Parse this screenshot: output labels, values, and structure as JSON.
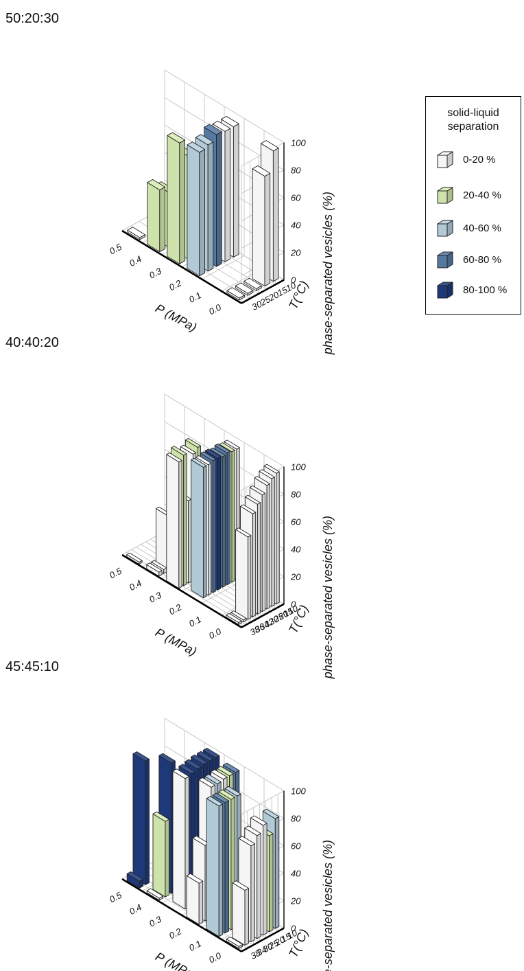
{
  "legend": {
    "title": "solid-liquid separation",
    "items": [
      {
        "label": "0-20 %",
        "color": "#ffffff"
      },
      {
        "label": "20-40 %",
        "color": "#d7ecb2"
      },
      {
        "label": "40-60 %",
        "color": "#b9d1df"
      },
      {
        "label": "60-80 %",
        "color": "#5a7ea8"
      },
      {
        "label": "80-100 %",
        "color": "#1f3b7f"
      }
    ]
  },
  "chart_data": [
    {
      "type": "bar3d",
      "title": "50:20:30",
      "xlabel": "P (MPa)",
      "ylabel": "T(°C)",
      "zlabel": "phase-separated vesicles (%)",
      "p_ticks": [
        "0.5",
        "0.4",
        "0.3",
        "0.2",
        "0.1",
        "0.0"
      ],
      "t_ticks": [
        "10",
        "15",
        "20",
        "25",
        "30"
      ],
      "z_ticks": [
        "0",
        "20",
        "40",
        "60",
        "80",
        "100"
      ],
      "zlim": [
        0,
        100
      ],
      "bars": [
        {
          "p": 0.5,
          "t": 30,
          "value": 0,
          "class": "0-20 %"
        },
        {
          "p": 0.4,
          "t": 30,
          "value": 45,
          "class": "20-40 %"
        },
        {
          "p": 0.4,
          "t": 25,
          "value": 40,
          "class": "20-40 %"
        },
        {
          "p": 0.4,
          "t": 20,
          "value": 12,
          "class": "0-20 %"
        },
        {
          "p": 0.4,
          "t": 15,
          "value": 8,
          "class": "0-20 %"
        },
        {
          "p": 0.3,
          "t": 30,
          "value": 88,
          "class": "20-40 %"
        },
        {
          "p": 0.3,
          "t": 25,
          "value": 75,
          "class": "20-40 %"
        },
        {
          "p": 0.3,
          "t": 20,
          "value": 35,
          "class": "0-20 %"
        },
        {
          "p": 0.3,
          "t": 15,
          "value": 25,
          "class": "0-20 %"
        },
        {
          "p": 0.3,
          "t": 10,
          "value": 10,
          "class": "0-20 %"
        },
        {
          "p": 0.2,
          "t": 30,
          "value": 90,
          "class": "40-60 %"
        },
        {
          "p": 0.2,
          "t": 25,
          "value": 92,
          "class": "40-60 %"
        },
        {
          "p": 0.2,
          "t": 20,
          "value": 96,
          "class": "60-80 %"
        },
        {
          "p": 0.2,
          "t": 15,
          "value": 95,
          "class": "0-20 %"
        },
        {
          "p": 0.2,
          "t": 10,
          "value": 95,
          "class": "0-20 %"
        },
        {
          "p": 0.0,
          "t": 30,
          "value": 0,
          "class": "0-20 %"
        },
        {
          "p": 0.0,
          "t": 25,
          "value": 0,
          "class": "0-20 %"
        },
        {
          "p": 0.0,
          "t": 20,
          "value": 0,
          "class": "0-20 %"
        },
        {
          "p": 0.0,
          "t": 15,
          "value": 80,
          "class": "0-20 %"
        },
        {
          "p": 0.0,
          "t": 10,
          "value": 95,
          "class": "0-20 %"
        }
      ]
    },
    {
      "type": "bar3d",
      "title": "40:40:20",
      "xlabel": "P (MPa)",
      "ylabel": "T(°C)",
      "zlabel": "phase-separated vesicles (%)",
      "p_ticks": [
        "0.5",
        "0.4",
        "0.3",
        "0.2",
        "0.1",
        "0.0"
      ],
      "t_ticks": [
        "10",
        "15",
        "20",
        "25",
        "30",
        "32",
        "34",
        "36",
        "38"
      ],
      "z_ticks": [
        "0",
        "20",
        "40",
        "60",
        "80",
        "100"
      ],
      "zlim": [
        0,
        100
      ],
      "bars": [
        {
          "p": 0.5,
          "t": 38,
          "value": 0,
          "class": "0-20 %"
        },
        {
          "p": 0.4,
          "t": 38,
          "value": 3,
          "class": "0-20 %"
        },
        {
          "p": 0.4,
          "t": 36,
          "value": 3,
          "class": "0-20 %"
        },
        {
          "p": 0.4,
          "t": 34,
          "value": 40,
          "class": "0-20 %"
        },
        {
          "p": 0.4,
          "t": 32,
          "value": 30,
          "class": "0-20 %"
        },
        {
          "p": 0.3,
          "t": 38,
          "value": 92,
          "class": "0-20 %"
        },
        {
          "p": 0.3,
          "t": 36,
          "value": 95,
          "class": "20-40 %"
        },
        {
          "p": 0.3,
          "t": 34,
          "value": 60,
          "class": "0-20 %"
        },
        {
          "p": 0.3,
          "t": 32,
          "value": 92,
          "class": "0-20 %"
        },
        {
          "p": 0.3,
          "t": 30,
          "value": 95,
          "class": "20-40 %"
        },
        {
          "p": 0.2,
          "t": 36,
          "value": 95,
          "class": "40-60 %"
        },
        {
          "p": 0.2,
          "t": 34,
          "value": 95,
          "class": "0-20 %"
        },
        {
          "p": 0.2,
          "t": 32,
          "value": 96,
          "class": "60-80 %"
        },
        {
          "p": 0.2,
          "t": 30,
          "value": 96,
          "class": "80-100 %"
        },
        {
          "p": 0.2,
          "t": 25,
          "value": 95,
          "class": "60-80 %"
        },
        {
          "p": 0.2,
          "t": 20,
          "value": 96,
          "class": "60-80 %"
        },
        {
          "p": 0.2,
          "t": 15,
          "value": 95,
          "class": "20-40 %"
        },
        {
          "p": 0.2,
          "t": 10,
          "value": 95,
          "class": "0-20 %"
        },
        {
          "p": 0.0,
          "t": 38,
          "value": 0,
          "class": "0-20 %"
        },
        {
          "p": 0.0,
          "t": 36,
          "value": 0,
          "class": "0-20 %"
        },
        {
          "p": 0.0,
          "t": 34,
          "value": 60,
          "class": "0-20 %"
        },
        {
          "p": 0.0,
          "t": 32,
          "value": 75,
          "class": "0-20 %"
        },
        {
          "p": 0.0,
          "t": 30,
          "value": 80,
          "class": "0-20 %"
        },
        {
          "p": 0.0,
          "t": 25,
          "value": 85,
          "class": "0-20 %"
        },
        {
          "p": 0.0,
          "t": 20,
          "value": 90,
          "class": "0-20 %"
        },
        {
          "p": 0.0,
          "t": 15,
          "value": 93,
          "class": "0-20 %"
        },
        {
          "p": 0.0,
          "t": 10,
          "value": 95,
          "class": "0-20 %"
        }
      ]
    },
    {
      "type": "bar3d",
      "title": "45:45:10",
      "xlabel": "P (MPa)",
      "ylabel": "T(°C)",
      "zlabel": "phase-separated vesicles (%)",
      "p_ticks": [
        "0.5",
        "0.4",
        "0.3",
        "0.2",
        "0.1",
        "0.0"
      ],
      "t_ticks": [
        "10",
        "15",
        "20",
        "25",
        "30",
        "34",
        "38"
      ],
      "z_ticks": [
        "0",
        "20",
        "40",
        "60",
        "80",
        "100"
      ],
      "zlim": [
        0,
        100
      ],
      "bars": [
        {
          "p": 0.5,
          "t": 38,
          "value": 5,
          "class": "80-100 %"
        },
        {
          "p": 0.5,
          "t": 34,
          "value": 90,
          "class": "80-100 %"
        },
        {
          "p": 0.4,
          "t": 38,
          "value": 0,
          "class": "0-20 %"
        },
        {
          "p": 0.4,
          "t": 34,
          "value": 55,
          "class": "20-40 %"
        },
        {
          "p": 0.4,
          "t": 30,
          "value": 95,
          "class": "80-100 %"
        },
        {
          "p": 0.4,
          "t": 25,
          "value": 60,
          "class": "0-20 %"
        },
        {
          "p": 0.3,
          "t": 34,
          "value": 95,
          "class": "0-20 %"
        },
        {
          "p": 0.3,
          "t": 30,
          "value": 96,
          "class": "80-100 %"
        },
        {
          "p": 0.3,
          "t": 25,
          "value": 97,
          "class": "80-100 %"
        },
        {
          "p": 0.3,
          "t": 20,
          "value": 98,
          "class": "80-100 %"
        },
        {
          "p": 0.3,
          "t": 15,
          "value": 98,
          "class": "80-100 %"
        },
        {
          "p": 0.3,
          "t": 10,
          "value": 98,
          "class": "80-100 %"
        },
        {
          "p": 0.2,
          "t": 38,
          "value": 30,
          "class": "0-20 %"
        },
        {
          "p": 0.2,
          "t": 34,
          "value": 55,
          "class": "0-20 %"
        },
        {
          "p": 0.2,
          "t": 30,
          "value": 95,
          "class": "0-20 %"
        },
        {
          "p": 0.2,
          "t": 25,
          "value": 95,
          "class": "40-60 %"
        },
        {
          "p": 0.2,
          "t": 20,
          "value": 96,
          "class": "0-20 %"
        },
        {
          "p": 0.2,
          "t": 15,
          "value": 96,
          "class": "20-40 %"
        },
        {
          "p": 0.2,
          "t": 10,
          "value": 96,
          "class": "60-80 %"
        },
        {
          "p": 0.1,
          "t": 38,
          "value": 95,
          "class": "40-60 %"
        },
        {
          "p": 0.1,
          "t": 34,
          "value": 95,
          "class": "60-80 %"
        },
        {
          "p": 0.1,
          "t": 30,
          "value": 95,
          "class": "20-40 %"
        },
        {
          "p": 0.1,
          "t": 25,
          "value": 95,
          "class": "40-60 %"
        },
        {
          "p": 0.0,
          "t": 38,
          "value": 0,
          "class": "0-20 %"
        },
        {
          "p": 0.0,
          "t": 34,
          "value": 40,
          "class": "0-20 %"
        },
        {
          "p": 0.0,
          "t": 30,
          "value": 70,
          "class": "0-20 %"
        },
        {
          "p": 0.0,
          "t": 25,
          "value": 75,
          "class": "0-20 %"
        },
        {
          "p": 0.0,
          "t": 20,
          "value": 80,
          "class": "0-20 %"
        },
        {
          "p": 0.0,
          "t": 15,
          "value": 70,
          "class": "20-40 %"
        },
        {
          "p": 0.0,
          "t": 10,
          "value": 80,
          "class": "40-60 %"
        }
      ]
    }
  ]
}
